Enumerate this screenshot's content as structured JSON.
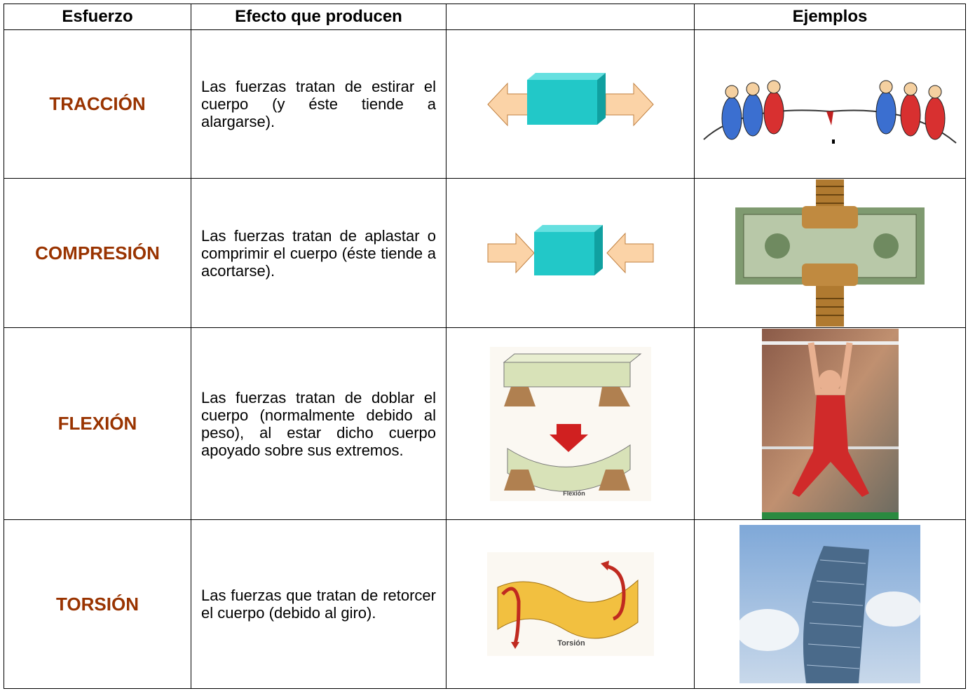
{
  "table": {
    "headers": [
      "Esfuerzo",
      "Efecto que producen",
      "Ejemplos"
    ],
    "rows": [
      {
        "name": "TRACCIÓN",
        "effect": "Las fuerzas tratan de estirar el cuerpo (y éste tiende a alargarse)."
      },
      {
        "name": "COMPRESIÓN",
        "effect": "Las fuerzas tratan de aplastar o comprimir el cuerpo (éste tiende a acortarse)."
      },
      {
        "name": "FLEXIÓN",
        "effect": "Las fuerzas tratan de doblar el cuerpo (normalmente debido al peso), al estar dicho cuerpo apoyado sobre sus extremos.",
        "figure_label": "Flexión"
      },
      {
        "name": "TORSIÓN",
        "effect": "Las fuerzas que tratan de retorcer el cuerpo (debido al giro).",
        "figure_label": "Torsión"
      }
    ]
  }
}
